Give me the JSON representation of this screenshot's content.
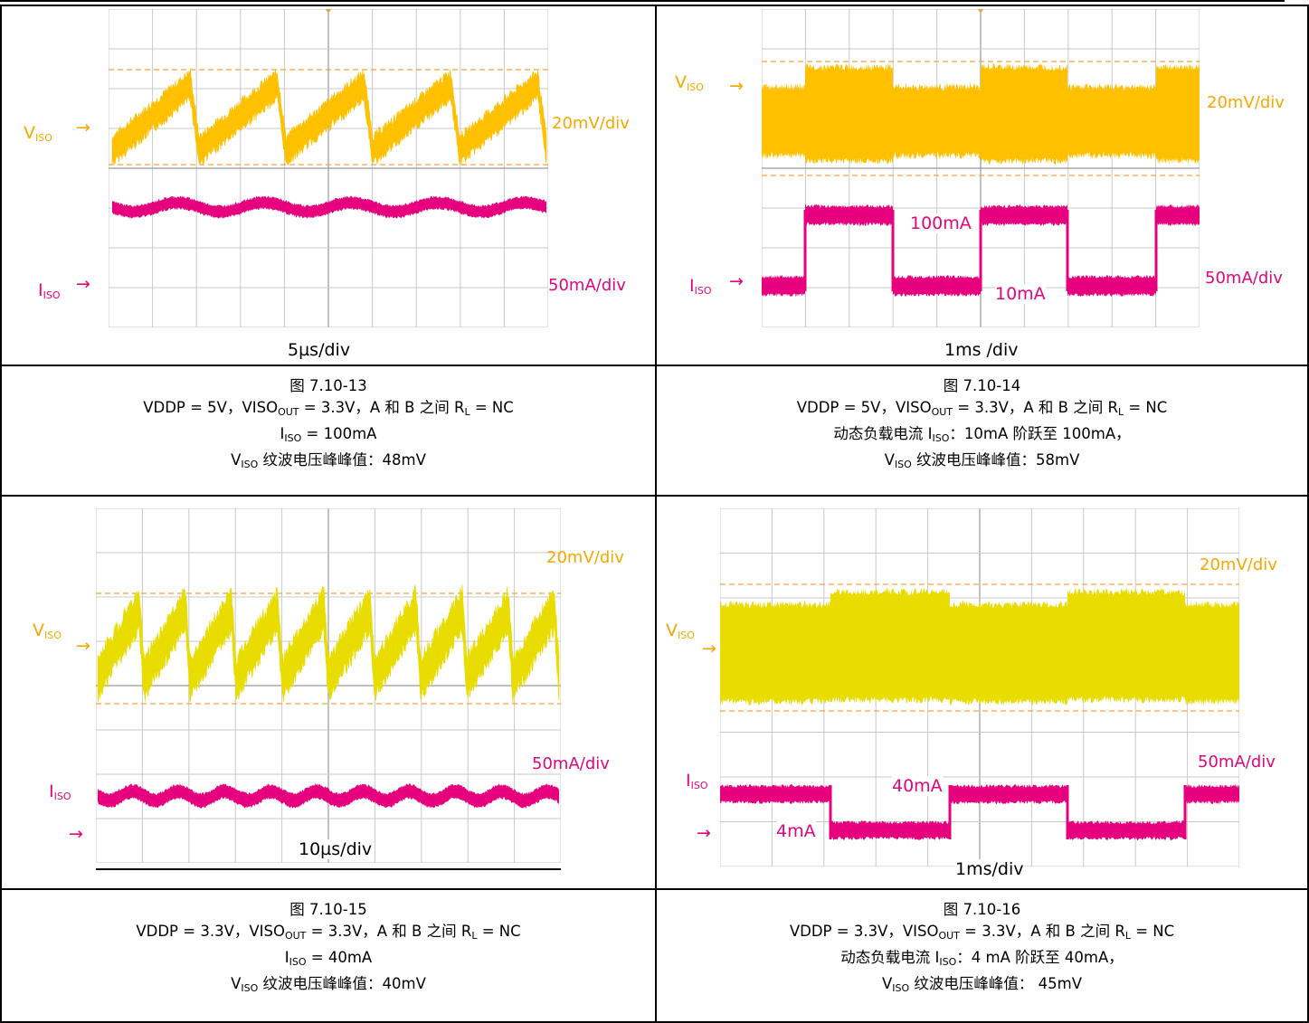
{
  "panels": [
    {
      "fig": "图 7.10-13",
      "line1": "VDDP = 5V，VISO",
      "line1_sub": "OUT",
      "line1_rest": " = 3.3V，A 和 B 之间 R",
      "line1_sub2": "L",
      "line1_end": " = NC",
      "line2_pre": "I",
      "line2_sub": "ISO",
      "line2_rest": " = 100mA",
      "line3_pre": "V",
      "line3_sub": "ISO",
      "line3_rest": " 纹波电压峰峰值：48mV",
      "v_label": "V",
      "v_sub": "ISO",
      "i_label": "I",
      "i_sub": "ISO",
      "v_scale": "20mV/div",
      "i_scale": "50mA/div",
      "timebase": "5µs/div"
    },
    {
      "fig": "图 7.10-14",
      "line1": "VDDP = 5V，VISO",
      "line1_sub": "OUT",
      "line1_rest": " = 3.3V，A 和 B 之间 R",
      "line1_sub2": "L",
      "line1_end": " = NC",
      "line2_pre": "动态负载电流 I",
      "line2_sub": "ISO",
      "line2_rest": "：10mA 阶跃至 100mA，",
      "line3_pre": "V",
      "line3_sub": "ISO",
      "line3_rest": " 纹波电压峰峰值：58mV",
      "v_label": "V",
      "v_sub": "ISO",
      "i_label": "I",
      "i_sub": "ISO",
      "v_scale": "20mV/div",
      "i_scale": "50mA/div",
      "timebase": "1ms /div",
      "high_label": "100mA",
      "low_label": "10mA"
    },
    {
      "fig": "图 7.10-15",
      "line1": "VDDP = 3.3V，VISO",
      "line1_sub": "OUT",
      "line1_rest": " = 3.3V，A 和 B 之间 R",
      "line1_sub2": "L",
      "line1_end": " = NC",
      "line2_pre": "I",
      "line2_sub": "ISO",
      "line2_rest": " = 40mA",
      "line3_pre": "V",
      "line3_sub": "ISO",
      "line3_rest": " 纹波电压峰峰值：40mV",
      "v_label": "V",
      "v_sub": "ISO",
      "i_label": "I",
      "i_sub": "ISO",
      "v_scale": "20mV/div",
      "i_scale": "50mA/div",
      "timebase": "10µs/div"
    },
    {
      "fig": "图 7.10-16",
      "line1": "VDDP = 3.3V，VISO",
      "line1_sub": "OUT",
      "line1_rest": " = 3.3V，A 和 B 之间 R",
      "line1_sub2": "L",
      "line1_end": " = NC",
      "line2_pre": "动态负载电流 I",
      "line2_sub": "ISO",
      "line2_rest": "：4 mA 阶跃至 40mA，",
      "line3_pre": "V",
      "line3_sub": "ISO",
      "line3_rest": " 纹波电压峰峰值： 45mV",
      "v_label": "V",
      "v_sub": "ISO",
      "i_label": "I",
      "i_sub": "ISO",
      "v_scale": "20mV/div",
      "i_scale": "50mA/div",
      "timebase": "1ms/div",
      "high_label": "40mA",
      "low_label": "4mA"
    }
  ],
  "colors": {
    "voltage_trace_1": "#ffc000",
    "voltage_trace_2": "#e8dc00",
    "current_trace": "#e6007e",
    "label_orange": "#f5a800",
    "label_pink": "#e0067d"
  }
}
